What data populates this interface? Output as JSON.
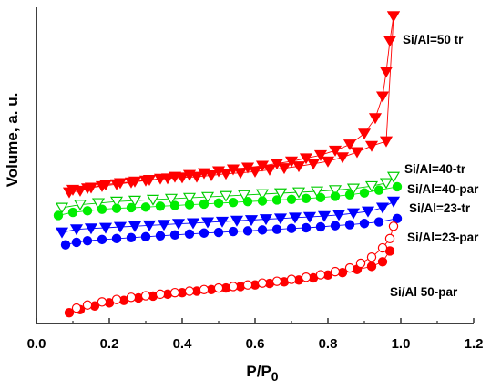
{
  "chart_data": {
    "type": "scatter",
    "xlabel": "P/P",
    "xlabel_sub": "0",
    "ylabel": "Volume, a. u.",
    "xlim": [
      0.0,
      1.2
    ],
    "ylim": [
      0,
      100
    ],
    "x_ticks": [
      "0.0",
      "0.2",
      "0.4",
      "0.6",
      "0.8",
      "1.0",
      "1.2"
    ],
    "y_ticks_shown": false,
    "grid": false,
    "legend": "series labels placed next to curves",
    "series": [
      {
        "name": "Si/Al=50 tr",
        "color": "#ff0000",
        "marker": "triangle-down",
        "filled": true,
        "adsorption": [
          [
            0.09,
            41
          ],
          [
            0.12,
            41.5
          ],
          [
            0.15,
            42.5
          ],
          [
            0.19,
            43.5
          ],
          [
            0.23,
            44
          ],
          [
            0.27,
            44.5
          ],
          [
            0.31,
            45
          ],
          [
            0.36,
            45.5
          ],
          [
            0.4,
            45.8
          ],
          [
            0.44,
            46
          ],
          [
            0.48,
            46.5
          ],
          [
            0.52,
            47
          ],
          [
            0.56,
            47.3
          ],
          [
            0.6,
            47.7
          ],
          [
            0.64,
            48.3
          ],
          [
            0.68,
            48.8
          ],
          [
            0.72,
            49.4
          ],
          [
            0.76,
            50.2
          ],
          [
            0.8,
            51
          ],
          [
            0.84,
            52.3
          ],
          [
            0.88,
            54
          ],
          [
            0.92,
            56
          ],
          [
            0.96,
            57.5
          ],
          [
            0.98,
            98
          ]
        ],
        "desorption": [
          [
            0.98,
            98
          ],
          [
            0.97,
            90
          ],
          [
            0.96,
            80
          ],
          [
            0.95,
            72
          ],
          [
            0.93,
            65
          ],
          [
            0.9,
            60
          ],
          [
            0.86,
            56.5
          ],
          [
            0.82,
            54.5
          ],
          [
            0.78,
            53
          ],
          [
            0.74,
            52
          ],
          [
            0.7,
            51
          ],
          [
            0.66,
            50.3
          ],
          [
            0.62,
            49.6
          ],
          [
            0.58,
            49
          ],
          [
            0.54,
            48.4
          ],
          [
            0.5,
            47.8
          ],
          [
            0.46,
            47.2
          ],
          [
            0.42,
            46.6
          ],
          [
            0.38,
            46
          ],
          [
            0.34,
            45.4
          ],
          [
            0.3,
            44.8
          ],
          [
            0.26,
            44.2
          ],
          [
            0.22,
            43.6
          ],
          [
            0.18,
            43
          ],
          [
            0.14,
            42.3
          ],
          [
            0.1,
            41.8
          ]
        ]
      },
      {
        "name": "Si/Al=40-tr",
        "color": "#00cc00",
        "marker": "triangle-down",
        "filled": false,
        "adsorption": [
          [
            0.07,
            36
          ],
          [
            0.12,
            37
          ],
          [
            0.17,
            37.5
          ],
          [
            0.22,
            38
          ],
          [
            0.27,
            38.3
          ],
          [
            0.32,
            38.6
          ],
          [
            0.37,
            38.9
          ],
          [
            0.42,
            39.2
          ],
          [
            0.47,
            39.5
          ],
          [
            0.52,
            39.8
          ],
          [
            0.57,
            40.1
          ],
          [
            0.62,
            40.4
          ],
          [
            0.67,
            40.7
          ],
          [
            0.72,
            41
          ],
          [
            0.77,
            41.3
          ],
          [
            0.82,
            41.7
          ],
          [
            0.87,
            42.2
          ],
          [
            0.92,
            43
          ],
          [
            0.96,
            44
          ],
          [
            0.98,
            46
          ]
        ],
        "desorption": []
      },
      {
        "name": "Si/Al=40-par",
        "color": "#00ee00",
        "marker": "circle",
        "filled": true,
        "adsorption": [
          [
            0.06,
            33.5
          ],
          [
            0.1,
            34.5
          ],
          [
            0.14,
            35
          ],
          [
            0.18,
            35.5
          ],
          [
            0.22,
            35.8
          ],
          [
            0.26,
            36
          ],
          [
            0.3,
            36.2
          ],
          [
            0.34,
            36.5
          ],
          [
            0.38,
            36.7
          ],
          [
            0.42,
            37
          ],
          [
            0.46,
            37.2
          ],
          [
            0.5,
            37.5
          ],
          [
            0.54,
            37.7
          ],
          [
            0.58,
            38
          ],
          [
            0.62,
            38.2
          ],
          [
            0.66,
            38.5
          ],
          [
            0.7,
            38.7
          ],
          [
            0.74,
            39
          ],
          [
            0.78,
            39.3
          ],
          [
            0.82,
            39.7
          ],
          [
            0.86,
            40.2
          ],
          [
            0.9,
            40.8
          ],
          [
            0.94,
            41.7
          ],
          [
            0.99,
            42.8
          ]
        ],
        "desorption": []
      },
      {
        "name": "Si/Al=23-tr",
        "color": "#0000ff",
        "marker": "triangle-down",
        "filled": true,
        "adsorption": [
          [
            0.07,
            28
          ],
          [
            0.11,
            29
          ],
          [
            0.15,
            29.3
          ],
          [
            0.19,
            29.5
          ],
          [
            0.23,
            29.8
          ],
          [
            0.27,
            30
          ],
          [
            0.31,
            30.3
          ],
          [
            0.35,
            30.5
          ],
          [
            0.39,
            30.8
          ],
          [
            0.43,
            31
          ],
          [
            0.47,
            31.3
          ],
          [
            0.51,
            31.5
          ],
          [
            0.55,
            31.8
          ],
          [
            0.59,
            32
          ],
          [
            0.63,
            32.3
          ],
          [
            0.67,
            32.5
          ],
          [
            0.71,
            32.8
          ],
          [
            0.75,
            33
          ],
          [
            0.79,
            33.3
          ],
          [
            0.83,
            33.7
          ],
          [
            0.87,
            34.2
          ],
          [
            0.91,
            34.8
          ],
          [
            0.95,
            36
          ],
          [
            0.98,
            38
          ]
        ],
        "desorption": []
      },
      {
        "name": "Si/Al=23-par",
        "color": "#0000ff",
        "marker": "circle",
        "filled": true,
        "adsorption": [
          [
            0.08,
            24
          ],
          [
            0.11,
            24.8
          ],
          [
            0.14,
            25.3
          ],
          [
            0.18,
            25.7
          ],
          [
            0.22,
            26
          ],
          [
            0.26,
            26.3
          ],
          [
            0.3,
            26.6
          ],
          [
            0.34,
            26.9
          ],
          [
            0.38,
            27.2
          ],
          [
            0.42,
            27.5
          ],
          [
            0.46,
            27.8
          ],
          [
            0.5,
            28
          ],
          [
            0.54,
            28.3
          ],
          [
            0.58,
            28.5
          ],
          [
            0.62,
            28.8
          ],
          [
            0.66,
            29
          ],
          [
            0.7,
            29.3
          ],
          [
            0.74,
            29.5
          ],
          [
            0.78,
            29.8
          ],
          [
            0.82,
            30.2
          ],
          [
            0.86,
            30.5
          ],
          [
            0.9,
            30.9
          ],
          [
            0.94,
            31.4
          ],
          [
            0.99,
            32.5
          ]
        ],
        "desorption": []
      },
      {
        "name": "Si/Al 50-par",
        "color": "#ff0000",
        "marker": "circle",
        "filled": "adsorption filled, desorption open",
        "adsorption": [
          [
            0.09,
            2
          ],
          [
            0.12,
            3
          ],
          [
            0.16,
            4.2
          ],
          [
            0.2,
            5.2
          ],
          [
            0.24,
            6
          ],
          [
            0.28,
            6.8
          ],
          [
            0.32,
            7.4
          ],
          [
            0.36,
            8
          ],
          [
            0.4,
            8.5
          ],
          [
            0.44,
            9
          ],
          [
            0.48,
            9.5
          ],
          [
            0.52,
            10
          ],
          [
            0.56,
            10.5
          ],
          [
            0.6,
            11
          ],
          [
            0.64,
            11.5
          ],
          [
            0.68,
            12
          ],
          [
            0.72,
            12.6
          ],
          [
            0.76,
            13.3
          ],
          [
            0.8,
            14.2
          ],
          [
            0.84,
            15
          ],
          [
            0.88,
            16
          ],
          [
            0.92,
            17
          ],
          [
            0.95,
            18.5
          ],
          [
            0.97,
            22
          ]
        ],
        "desorption": [
          [
            0.98,
            30
          ],
          [
            0.97,
            26
          ],
          [
            0.95,
            23
          ],
          [
            0.92,
            20
          ],
          [
            0.89,
            18
          ],
          [
            0.86,
            16.5
          ],
          [
            0.82,
            15.3
          ],
          [
            0.78,
            14.3
          ],
          [
            0.74,
            13.5
          ],
          [
            0.7,
            12.8
          ],
          [
            0.66,
            12.2
          ],
          [
            0.62,
            11.6
          ],
          [
            0.58,
            11
          ],
          [
            0.54,
            10.5
          ],
          [
            0.5,
            10
          ],
          [
            0.46,
            9.5
          ],
          [
            0.42,
            9
          ],
          [
            0.38,
            8.5
          ],
          [
            0.34,
            8
          ],
          [
            0.3,
            7.5
          ],
          [
            0.26,
            7
          ],
          [
            0.22,
            6.3
          ],
          [
            0.18,
            5.5
          ],
          [
            0.14,
            4.5
          ],
          [
            0.11,
            3.5
          ]
        ]
      }
    ]
  }
}
